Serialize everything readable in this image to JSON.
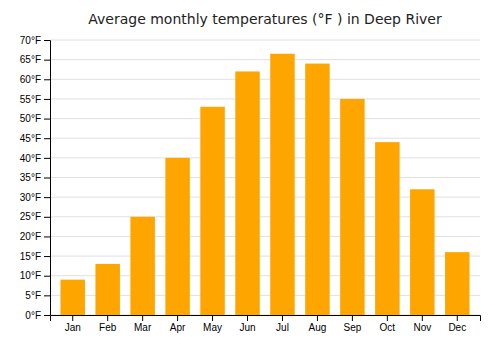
{
  "chart_data": {
    "type": "bar",
    "title": "Average monthly temperatures (°F ) in Deep River",
    "categories": [
      "Jan",
      "Feb",
      "Mar",
      "Apr",
      "May",
      "Jun",
      "Jul",
      "Aug",
      "Sep",
      "Oct",
      "Nov",
      "Dec"
    ],
    "values": [
      9,
      13,
      25,
      40,
      53,
      62,
      66.5,
      64,
      55,
      44,
      32,
      16
    ],
    "color": "#FFA500",
    "ylim": [
      0,
      70
    ],
    "yticks": [
      {
        "value": 0,
        "label": "0°F"
      },
      {
        "value": 5,
        "label": "5°F"
      },
      {
        "value": 10,
        "label": "10°F"
      },
      {
        "value": 15,
        "label": "15°F"
      },
      {
        "value": 20,
        "label": "20°F"
      },
      {
        "value": 25,
        "label": "25°F"
      },
      {
        "value": 30,
        "label": "30°F"
      },
      {
        "value": 35,
        "label": "35°F"
      },
      {
        "value": 40,
        "label": "40°F"
      },
      {
        "value": 45,
        "label": "45°F"
      },
      {
        "value": 50,
        "label": "50°F"
      },
      {
        "value": 55,
        "label": "55°F"
      },
      {
        "value": 60,
        "label": "60°F"
      },
      {
        "value": 65,
        "label": "65°F"
      },
      {
        "value": 70,
        "label": "70°F"
      }
    ],
    "grid": true
  }
}
